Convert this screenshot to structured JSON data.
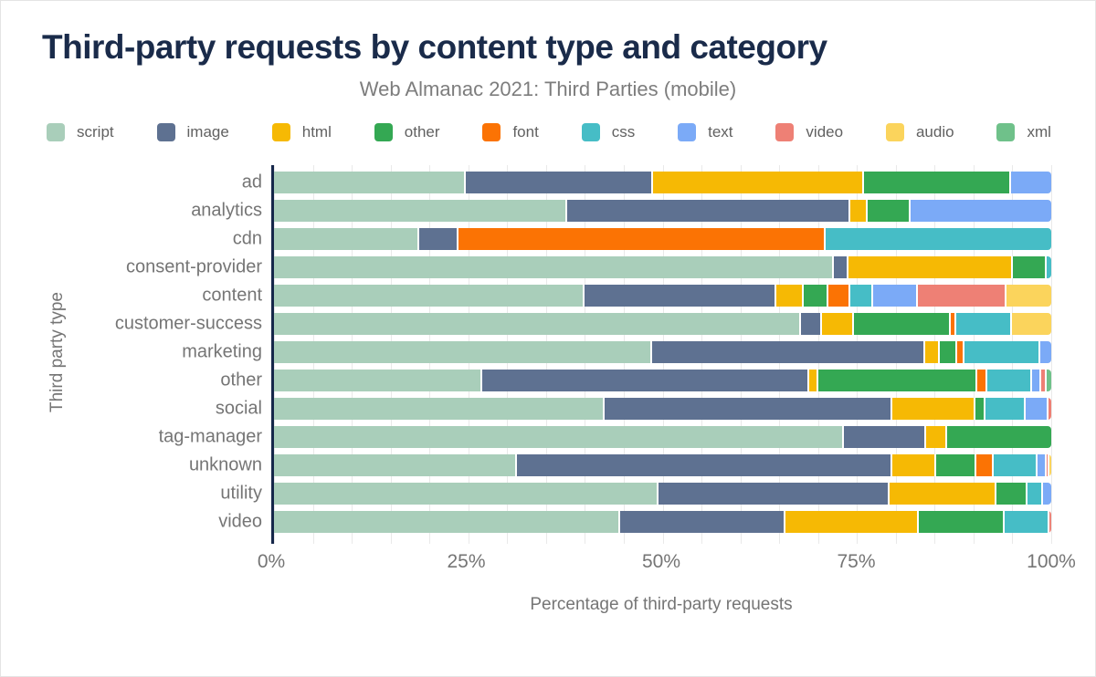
{
  "title": "Third-party requests by content type and category",
  "subtitle": "Web Almanac 2021: Third Parties (mobile)",
  "theme": {
    "title_color": "#1a2b4a",
    "axis_line_color": "#16274a",
    "muted_text_color": "#757575",
    "gridline_color": "#e9e9e9",
    "background": "#ffffff"
  },
  "chart_data": {
    "type": "bar",
    "orientation": "horizontal",
    "stacked": true,
    "title": "Third-party requests by content type and category",
    "subtitle": "Web Almanac 2021: Third Parties (mobile)",
    "xlabel": "Percentage of third-party requests",
    "ylabel": "Third party type",
    "xlim": [
      0,
      100
    ],
    "grid": "minor vertical every 5%",
    "legend_position": "top",
    "x_ticks": [
      {
        "label": "0%",
        "value": 0
      },
      {
        "label": "25%",
        "value": 25
      },
      {
        "label": "50%",
        "value": 50
      },
      {
        "label": "75%",
        "value": 75
      },
      {
        "label": "100%",
        "value": 100
      }
    ],
    "legend": [
      {
        "name": "script",
        "color": "#a9ceba"
      },
      {
        "name": "image",
        "color": "#5e7191"
      },
      {
        "name": "html",
        "color": "#f6b904"
      },
      {
        "name": "other",
        "color": "#34a853"
      },
      {
        "name": "font",
        "color": "#fb7304"
      },
      {
        "name": "css",
        "color": "#46bdc6"
      },
      {
        "name": "text",
        "color": "#7baaf7"
      },
      {
        "name": "video",
        "color": "#ee8075"
      },
      {
        "name": "audio",
        "color": "#fbd45c"
      },
      {
        "name": "xml",
        "color": "#6fc18a"
      }
    ],
    "categories": [
      "ad",
      "analytics",
      "cdn",
      "consent-provider",
      "content",
      "customer-success",
      "marketing",
      "other",
      "social",
      "tag-manager",
      "unknown",
      "utility",
      "video"
    ],
    "series": [
      {
        "name": "script",
        "values": [
          24.5,
          37.5,
          18.5,
          71.8,
          39.7,
          67.6,
          48.4,
          26.6,
          42.3,
          73.1,
          31.0,
          49.2,
          44.3
        ]
      },
      {
        "name": "image",
        "values": [
          24.0,
          36.4,
          5.0,
          1.9,
          24.7,
          2.7,
          35.1,
          42.0,
          37.0,
          10.6,
          48.3,
          29.8,
          21.3
        ]
      },
      {
        "name": "html",
        "values": [
          27.2,
          2.3,
          0,
          21.1,
          3.5,
          4.1,
          1.9,
          1.2,
          10.7,
          2.7,
          5.7,
          13.7,
          17.1
        ]
      },
      {
        "name": "other",
        "values": [
          18.9,
          5.5,
          0,
          4.4,
          3.2,
          12.4,
          2.3,
          20.5,
          1.3,
          13.6,
          5.2,
          4.0,
          11.1
        ]
      },
      {
        "name": "font",
        "values": [
          0,
          0,
          47.3,
          0,
          2.8,
          0.7,
          0.9,
          1.3,
          0,
          0,
          2.2,
          0,
          0
        ]
      },
      {
        "name": "css",
        "values": [
          0,
          0,
          29.2,
          0.8,
          3.0,
          7.2,
          9.8,
          5.7,
          5.2,
          0,
          5.7,
          2.0,
          5.7
        ]
      },
      {
        "name": "text",
        "values": [
          5.4,
          18.3,
          0,
          0,
          5.7,
          0,
          1.6,
          1.2,
          2.9,
          0,
          1.1,
          1.3,
          0
        ]
      },
      {
        "name": "video",
        "values": [
          0,
          0,
          0,
          0,
          11.4,
          0,
          0,
          0.7,
          0.6,
          0,
          0.3,
          0,
          0.5
        ]
      },
      {
        "name": "audio",
        "values": [
          0,
          0,
          0,
          0,
          6.0,
          5.3,
          0,
          0,
          0,
          0,
          0.5,
          0,
          0
        ]
      },
      {
        "name": "xml",
        "values": [
          0,
          0,
          0,
          0,
          0,
          0,
          0,
          0.8,
          0,
          0,
          0,
          0,
          0
        ]
      }
    ]
  }
}
